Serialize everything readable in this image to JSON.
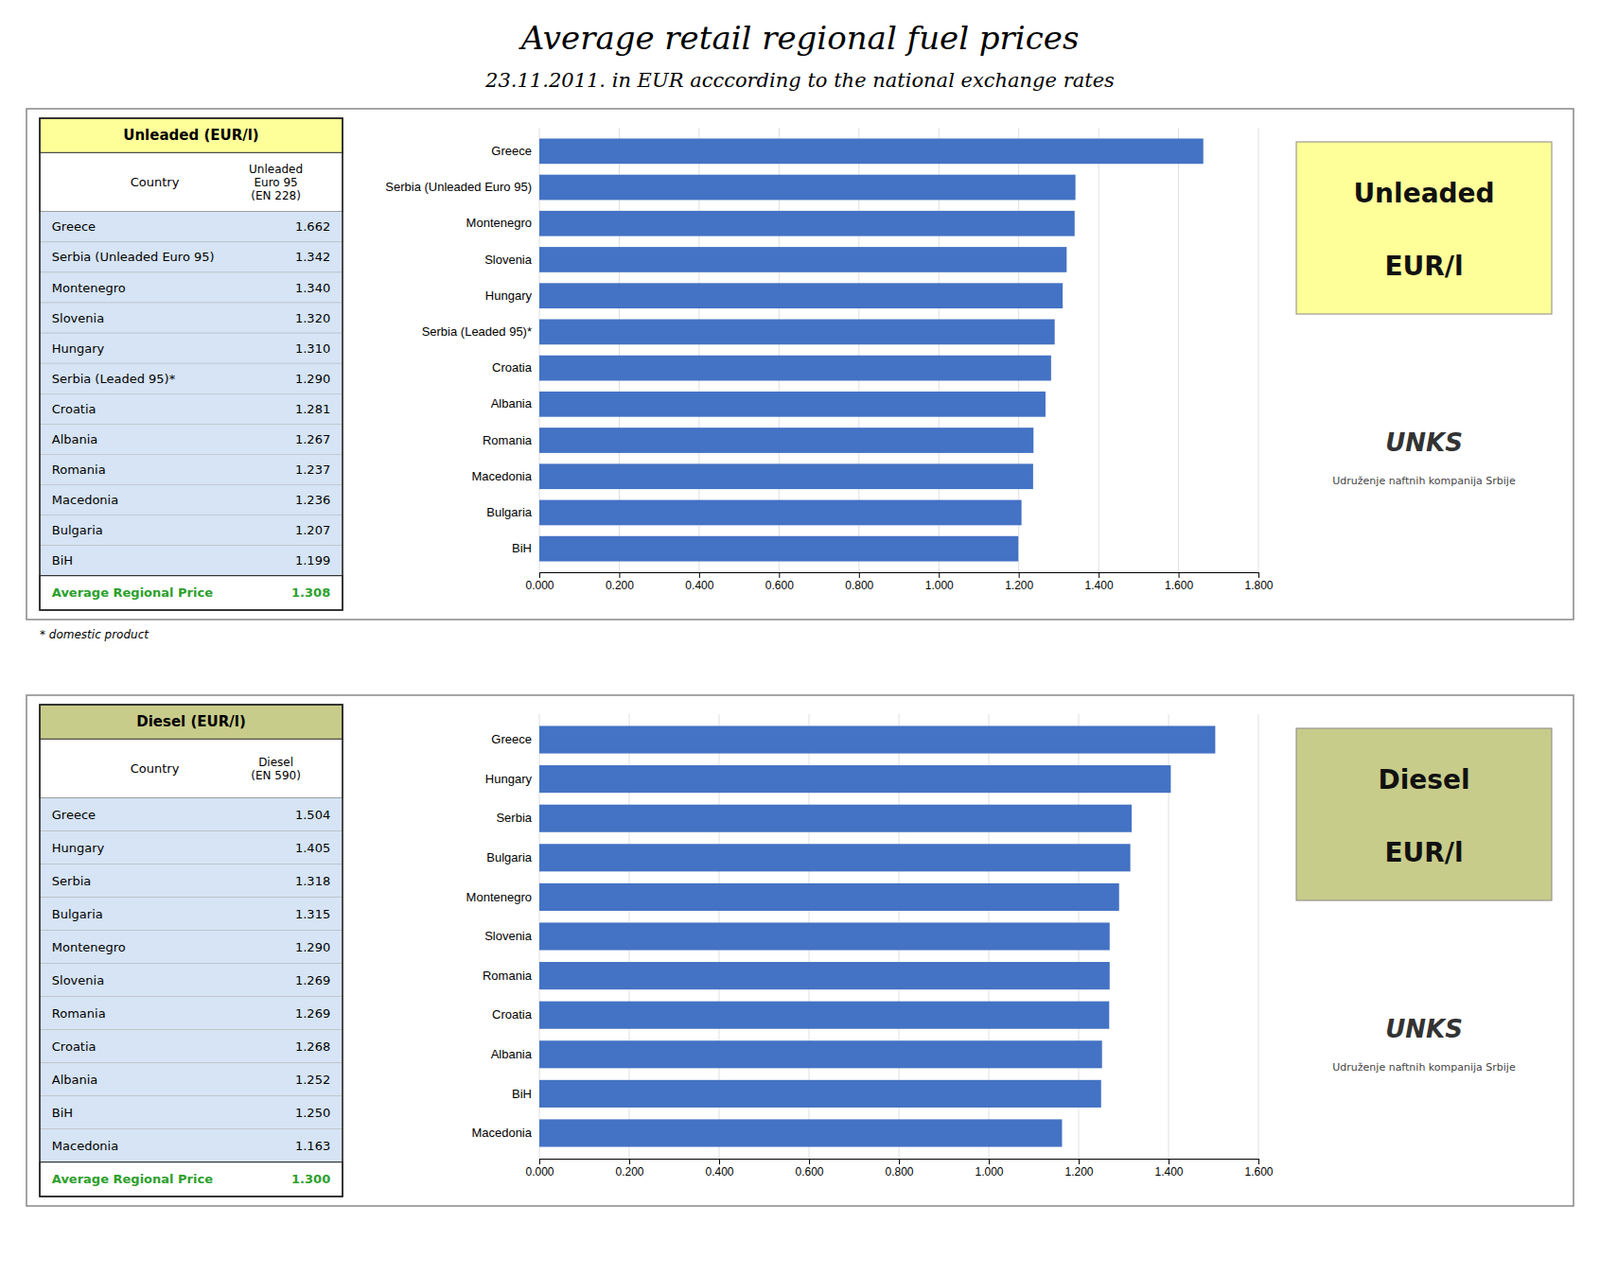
{
  "chart_data": [
    {
      "type": "bar",
      "orientation": "horizontal",
      "title": "Average retail regional fuel prices",
      "subtitle": "23.11.2011. in EUR acccording to the national exchange rates",
      "categories": [
        "BiH",
        "Bulgaria",
        "Macedonia",
        "Romania",
        "Albania",
        "Croatia",
        "Serbia (Leaded 95)*",
        "Hungary",
        "Slovenia",
        "Montenegro",
        "Serbia (Unleaded Euro 95)",
        "Greece"
      ],
      "values": [
        1.199,
        1.207,
        1.236,
        1.237,
        1.267,
        1.281,
        1.29,
        1.31,
        1.32,
        1.34,
        1.342,
        1.662
      ],
      "color": "#4472C4",
      "xlim": [
        0.0,
        1.8
      ],
      "xticks": [
        {
          "value": 0.0,
          "label": "0.000"
        },
        {
          "value": 0.2,
          "label": "0.200"
        },
        {
          "value": 0.4,
          "label": "0.400"
        },
        {
          "value": 0.6,
          "label": "0.600"
        },
        {
          "value": 0.8,
          "label": "0.800"
        },
        {
          "value": 1.0,
          "label": "1.000"
        },
        {
          "value": 1.2,
          "label": "1.200"
        },
        {
          "value": 1.4,
          "label": "1.400"
        },
        {
          "value": 1.6,
          "label": "1.600"
        },
        {
          "value": 1.8,
          "label": "1.800"
        }
      ],
      "grid": true,
      "annotations": [
        "Unleaded",
        "EUR/l",
        "UNKS",
        "Udruženje naftnih kompanija Srbije"
      ]
    },
    {
      "type": "table",
      "title": "Unleaded (EUR/l)",
      "color": "#FFFF99",
      "columns": [
        "Country",
        "Unleaded\nEuro 95\n(EN 228)"
      ],
      "categories": [
        "Greece",
        "Serbia (Unleaded Euro 95)",
        "Montenegro",
        "Slovenia",
        "Hungary",
        "Serbia (Leaded 95)*",
        "Croatia",
        "Albania",
        "Romania",
        "Macedonia",
        "Bulgaria",
        "BiH"
      ],
      "values": [
        1.662,
        1.342,
        1.34,
        1.32,
        1.31,
        1.29,
        1.281,
        1.267,
        1.237,
        1.236,
        1.207,
        1.199
      ],
      "value_labels": [
        "1.662",
        "1.342",
        "1.340",
        "1.320",
        "1.310",
        "1.290",
        "1.281",
        "1.267",
        "1.237",
        "1.236",
        "1.207",
        "1.199"
      ],
      "average_label": "Average Regional Price",
      "average": 1.308,
      "average_value_label": "1.308",
      "annotations": [
        "* domestic product"
      ]
    },
    {
      "type": "bar",
      "orientation": "horizontal",
      "categories": [
        "Macedonia",
        "BiH",
        "Albania",
        "Croatia",
        "Romania",
        "Slovenia",
        "Montenegro",
        "Bulgaria",
        "Serbia",
        "Hungary",
        "Greece"
      ],
      "values": [
        1.163,
        1.25,
        1.252,
        1.268,
        1.269,
        1.269,
        1.29,
        1.315,
        1.318,
        1.405,
        1.504
      ],
      "color": "#4472C4",
      "xlim": [
        0.0,
        1.6
      ],
      "xticks": [
        {
          "value": 0.0,
          "label": "0.000"
        },
        {
          "value": 0.2,
          "label": "0.200"
        },
        {
          "value": 0.4,
          "label": "0.400"
        },
        {
          "value": 0.6,
          "label": "0.600"
        },
        {
          "value": 0.8,
          "label": "0.800"
        },
        {
          "value": 1.0,
          "label": "1.000"
        },
        {
          "value": 1.2,
          "label": "1.200"
        },
        {
          "value": 1.4,
          "label": "1.400"
        },
        {
          "value": 1.6,
          "label": "1.600"
        }
      ],
      "grid": true,
      "annotations": [
        "Diesel",
        "EUR/l",
        "UNKS",
        "Udruženje naftnih kompanija Srbije"
      ]
    },
    {
      "type": "table",
      "title": "Diesel (EUR/l)",
      "color": "#C8CC8A",
      "columns": [
        "Country",
        "Diesel\n(EN 590)"
      ],
      "categories": [
        "Greece",
        "Hungary",
        "Serbia",
        "Bulgaria",
        "Montenegro",
        "Slovenia",
        "Romania",
        "Croatia",
        "Albania",
        "BiH",
        "Macedonia"
      ],
      "values": [
        1.504,
        1.405,
        1.318,
        1.315,
        1.29,
        1.269,
        1.269,
        1.268,
        1.252,
        1.25,
        1.163
      ],
      "value_labels": [
        "1.504",
        "1.405",
        "1.318",
        "1.315",
        "1.290",
        "1.269",
        "1.269",
        "1.268",
        "1.252",
        "1.250",
        "1.163"
      ],
      "average_label": "Average Regional Price",
      "average": 1.3,
      "average_value_label": "1.300"
    }
  ]
}
